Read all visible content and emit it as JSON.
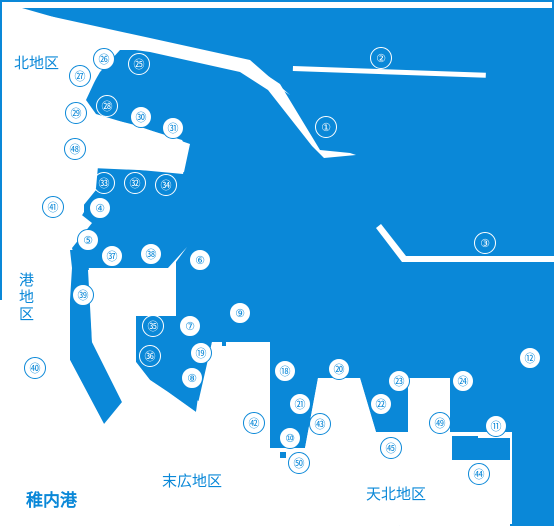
{
  "port_name": "稚内港",
  "colors": {
    "water": "#0a88d8",
    "land": "#ffffff",
    "breakwater": "#ffffff"
  },
  "districts": {
    "north": "北地区",
    "port": "港地区",
    "suehiro": "末広地区",
    "tenpoku": "天北地区"
  },
  "berth_labels": {
    "b1": "①",
    "b2": "②",
    "b3": "③",
    "b4": "④",
    "b5": "⑤",
    "b6": "⑥",
    "b7": "⑦",
    "b8": "⑧",
    "b9": "⑨",
    "b10": "⑩",
    "b11": "⑪",
    "b12": "⑫",
    "b18": "⑱",
    "b19": "⑲",
    "b20": "⑳",
    "b21": "㉑",
    "b22": "㉒",
    "b23": "㉓",
    "b24": "㉔",
    "b25": "㉕",
    "b26": "㉖",
    "b27": "㉗",
    "b28": "㉘",
    "b29": "㉙",
    "b30": "㉚",
    "b31": "㉛",
    "b32": "㉜",
    "b33": "㉝",
    "b34": "㉞",
    "b35": "㉟",
    "b36": "㊱",
    "b37": "㊲",
    "b38": "㊳",
    "b39": "㊴",
    "b40": "㊵",
    "b41": "㊶",
    "b42": "㊷",
    "b43": "㊸",
    "b44": "㊹",
    "b45": "㊺",
    "b48": "㊽",
    "b49": "㊾",
    "b50": "㊿"
  }
}
